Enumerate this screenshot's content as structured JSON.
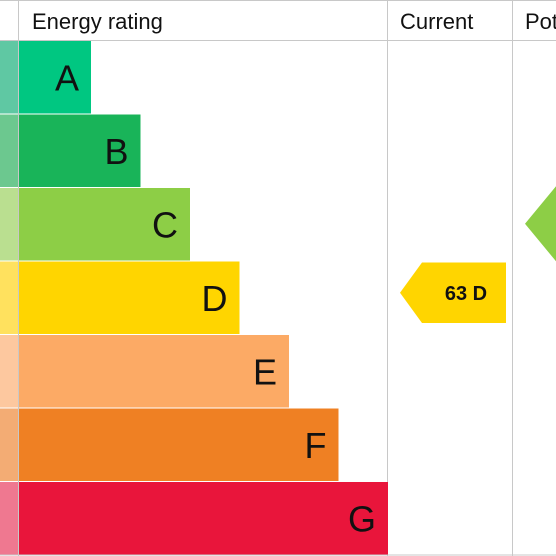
{
  "chart_data": {
    "type": "bar",
    "title": "",
    "header": {
      "rating_label": "Energy rating",
      "current_label": "Current",
      "potential_label": "Pot"
    },
    "bands": [
      {
        "letter": "A",
        "color": "#00c781",
        "edge_color": "#5fc8a3"
      },
      {
        "letter": "B",
        "color": "#19b459",
        "edge_color": "#6cc88f"
      },
      {
        "letter": "C",
        "color": "#8dce46",
        "edge_color": "#badf90"
      },
      {
        "letter": "D",
        "color": "#ffd500",
        "edge_color": "#ffe15e"
      },
      {
        "letter": "E",
        "color": "#fcaa65",
        "edge_color": "#fdc89f"
      },
      {
        "letter": "F",
        "color": "#ef8023",
        "edge_color": "#f3ac74"
      },
      {
        "letter": "G",
        "color": "#e9153b",
        "edge_color": "#ef7890"
      }
    ],
    "current": {
      "score": 63,
      "band": "D",
      "label": "63 D",
      "color": "#ffd500"
    },
    "potential": {
      "band": "C",
      "color": "#8dce46"
    },
    "grid_color": "#c8c8c8"
  }
}
